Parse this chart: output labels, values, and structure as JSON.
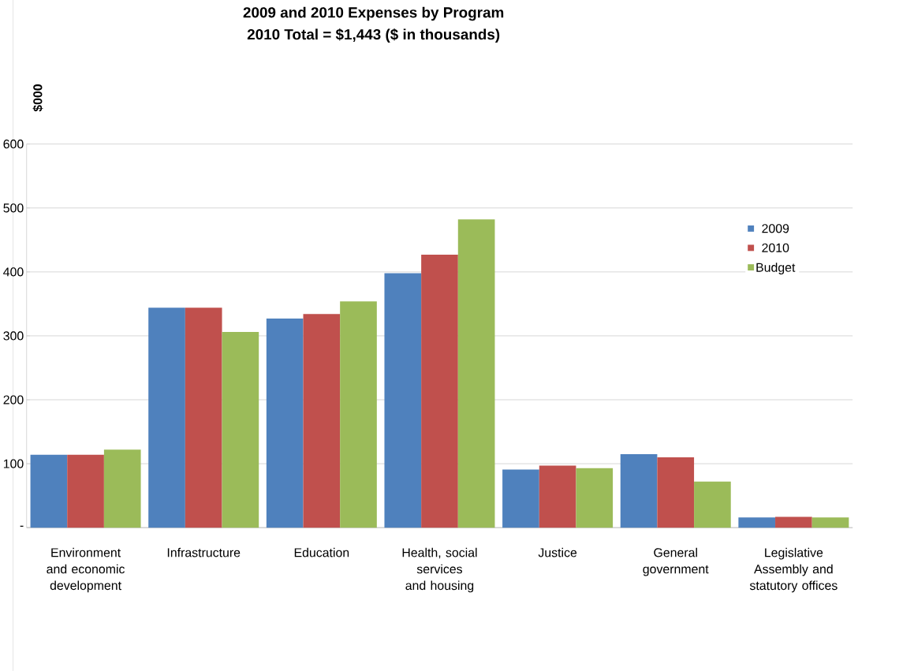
{
  "chart_data": {
    "type": "bar",
    "title": "2009 and 2010 Expenses by Program",
    "subtitle": "2010 Total = $1,443 ($ in thousands)",
    "ylabel": "$000",
    "categories": [
      "Environment and economic development",
      "Infrastructure",
      "Education",
      "Health, social services and housing",
      "Justice",
      "General government",
      "Legislative Assembly and statutory offices"
    ],
    "series": [
      {
        "name": "2009",
        "color": "#4f81bd",
        "values": [
          114,
          344,
          327,
          398,
          91,
          115,
          16
        ]
      },
      {
        "name": "2010",
        "color": "#c0504d",
        "values": [
          114,
          344,
          334,
          427,
          97,
          110,
          17
        ]
      },
      {
        "name": "Budget",
        "color": "#9bbb59",
        "values": [
          122,
          306,
          354,
          482,
          93,
          72,
          16
        ]
      }
    ],
    "ylim": [
      0,
      600
    ],
    "yticks": [
      {
        "value": 0,
        "label": "-"
      },
      100,
      200,
      300,
      400,
      500,
      600
    ],
    "grid": "y",
    "legend": "right"
  }
}
